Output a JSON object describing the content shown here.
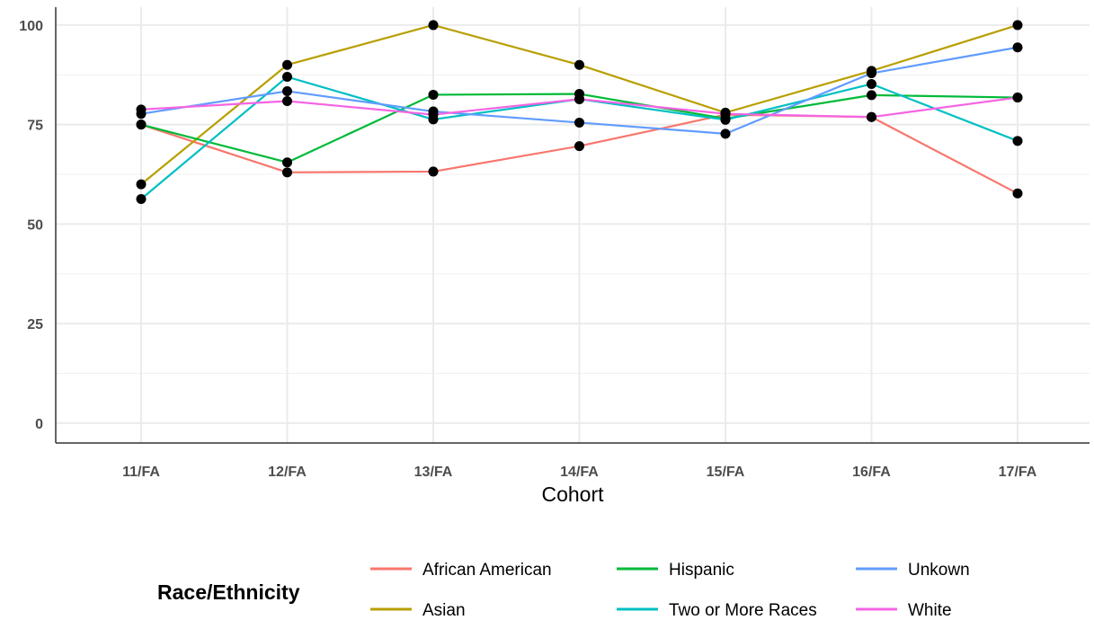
{
  "chart_data": {
    "type": "line",
    "xlabel": "Cohort",
    "ylabel": "",
    "categories": [
      "11/FA",
      "12/FA",
      "13/FA",
      "14/FA",
      "15/FA",
      "16/FA",
      "17/FA"
    ],
    "ylim": [
      -5,
      104.5
    ],
    "yticks": [
      0,
      25,
      50,
      75,
      100
    ],
    "grid": true,
    "legend": {
      "title": "Race/Ethnicity",
      "position": "bottom"
    },
    "series": [
      {
        "name": "African American",
        "color": "#F8766D",
        "values": [
          75.0,
          63.0,
          63.2,
          69.6,
          77.5,
          76.9,
          57.7
        ]
      },
      {
        "name": "Asian",
        "color": "#B79F00",
        "values": [
          60.0,
          90.0,
          100.0,
          90.0,
          78.0,
          88.5,
          100.0
        ]
      },
      {
        "name": "Hispanic",
        "color": "#00BA38",
        "values": [
          75.0,
          65.5,
          82.5,
          82.7,
          76.5,
          82.4,
          81.8
        ]
      },
      {
        "name": "Two or More Races",
        "color": "#00BFC4",
        "values": [
          56.3,
          87.0,
          76.3,
          81.4,
          76.2,
          85.2,
          70.9
        ]
      },
      {
        "name": "Unkown",
        "color": "#619CFF",
        "values": [
          77.7,
          83.4,
          78.3,
          75.5,
          72.7,
          87.9,
          94.4
        ]
      },
      {
        "name": "White",
        "color": "#F564E3",
        "values": [
          78.8,
          80.9,
          77.5,
          81.4,
          77.7,
          76.9,
          81.8
        ]
      }
    ]
  }
}
